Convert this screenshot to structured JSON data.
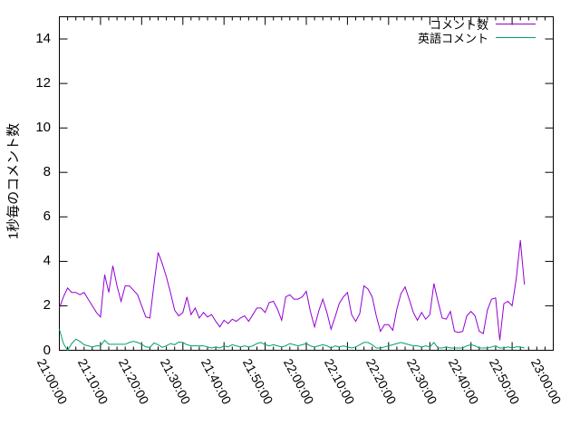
{
  "figure": {
    "background_color": "#ffffff",
    "axis_color": "#000000",
    "y_axis_title": "1秒毎のコメント数"
  },
  "legend": {
    "position": "top-right-inside",
    "entries": [
      {
        "label": "コメント数",
        "color": "#9400d3"
      },
      {
        "label": "英語コメント",
        "color": "#009e73"
      }
    ]
  },
  "chart_data": {
    "type": "line",
    "title": "",
    "xlabel": "",
    "ylabel": "1秒毎のコメント数",
    "grid": false,
    "legend_position": "top-right-inside",
    "x_start_time": "21:00:00",
    "x_end_time": "23:00:00",
    "x_point_interval_seconds": 60,
    "xlim_minutes": [
      0,
      120
    ],
    "x_tick_interval_minutes": 10,
    "x_minor_tick_interval_minutes": 2,
    "x_tick_labels": [
      "21:00:00",
      "21:10:00",
      "21:20:00",
      "21:30:00",
      "21:40:00",
      "21:50:00",
      "22:00:00",
      "22:10:00",
      "22:20:00",
      "22:30:00",
      "22:40:00",
      "22:50:00",
      "23:00:00"
    ],
    "y_tick_values": [
      0,
      2,
      4,
      6,
      8,
      10,
      12,
      14
    ],
    "ylim": [
      0,
      15.0
    ],
    "series": [
      {
        "name": "コメント数",
        "color": "#9400d3",
        "values": [
          1.9,
          2.4,
          2.8,
          2.6,
          2.6,
          2.5,
          2.6,
          2.3,
          2.0,
          1.7,
          1.5,
          3.4,
          2.6,
          3.8,
          2.9,
          2.2,
          2.9,
          2.9,
          2.7,
          2.5,
          2.0,
          1.5,
          1.45,
          3.0,
          4.4,
          3.9,
          3.3,
          2.6,
          1.8,
          1.55,
          1.7,
          2.4,
          1.6,
          1.9,
          1.45,
          1.7,
          1.5,
          1.6,
          1.3,
          1.05,
          1.35,
          1.2,
          1.4,
          1.3,
          1.45,
          1.55,
          1.3,
          1.6,
          1.9,
          1.9,
          1.7,
          2.15,
          2.2,
          1.85,
          1.35,
          2.4,
          2.5,
          2.3,
          2.3,
          2.4,
          2.65,
          1.75,
          1.05,
          1.75,
          2.3,
          1.7,
          0.95,
          1.5,
          2.1,
          2.4,
          2.6,
          1.6,
          1.3,
          1.65,
          2.9,
          2.75,
          2.4,
          1.55,
          0.85,
          1.15,
          1.15,
          0.9,
          1.85,
          2.55,
          2.85,
          2.3,
          1.7,
          1.35,
          1.7,
          1.4,
          1.6,
          3.0,
          2.2,
          1.45,
          1.4,
          1.75,
          0.85,
          0.8,
          0.85,
          1.55,
          1.75,
          1.55,
          0.85,
          0.75,
          1.8,
          2.3,
          2.35,
          0.45,
          2.1,
          2.2,
          2.0,
          3.2,
          4.95,
          2.95
        ]
      },
      {
        "name": "英語コメント",
        "color": "#009e73",
        "values": [
          0.95,
          0.3,
          0.0,
          0.3,
          0.5,
          0.4,
          0.25,
          0.2,
          0.15,
          0.2,
          0.2,
          0.45,
          0.27,
          0.27,
          0.27,
          0.27,
          0.27,
          0.35,
          0.4,
          0.35,
          0.27,
          0.15,
          0.13,
          0.33,
          0.25,
          0.13,
          0.2,
          0.3,
          0.25,
          0.37,
          0.35,
          0.25,
          0.2,
          0.2,
          0.2,
          0.2,
          0.15,
          0.1,
          0.15,
          0.1,
          0.2,
          0.15,
          0.25,
          0.2,
          0.15,
          0.2,
          0.15,
          0.2,
          0.3,
          0.35,
          0.25,
          0.2,
          0.25,
          0.2,
          0.15,
          0.2,
          0.3,
          0.25,
          0.2,
          0.25,
          0.3,
          0.2,
          0.15,
          0.2,
          0.25,
          0.2,
          0.1,
          0.2,
          0.15,
          0.2,
          0.15,
          0.1,
          0.15,
          0.25,
          0.35,
          0.35,
          0.25,
          0.1,
          0.1,
          0.15,
          0.2,
          0.25,
          0.3,
          0.35,
          0.3,
          0.25,
          0.2,
          0.2,
          0.15,
          0.2,
          0.15,
          0.35,
          0.1,
          0.1,
          0.15,
          0.1,
          0.1,
          0.1,
          0.1,
          0.2,
          0.25,
          0.2,
          0.1,
          0.1,
          0.1,
          0.15,
          0.2,
          0.1,
          0.1,
          0.15,
          0.1,
          0.15,
          0.15,
          0.1
        ]
      }
    ]
  }
}
